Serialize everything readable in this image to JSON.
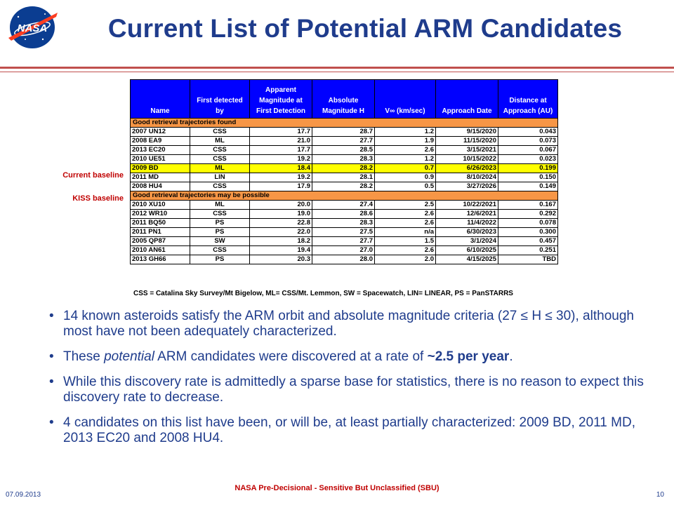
{
  "slide": {
    "title": "Current List of Potential ARM Candidates",
    "logo_text": "NASA"
  },
  "side_labels": {
    "current": "Current baseline",
    "kiss": "KISS baseline"
  },
  "table": {
    "headers": [
      "Name",
      "First detected by",
      "Apparent Magnitude at First Detection",
      "Absolute Magnitude H",
      "V∞ (km/sec)",
      "Approach Date",
      "Distance at Approach (AU)"
    ],
    "section1": "Good retrieval trajectories found",
    "rows1": [
      [
        "2007 UN12",
        "CSS",
        "17.7",
        "28.7",
        "1.2",
        "9/15/2020",
        "0.043"
      ],
      [
        "2008 EA9",
        "ML",
        "21.0",
        "27.7",
        "1.9",
        "11/15/2020",
        "0.073"
      ],
      [
        "2013 EC20",
        "CSS",
        "17.7",
        "28.5",
        "2.6",
        "3/15/2021",
        "0.067"
      ],
      [
        "2010 UE51",
        "CSS",
        "19.2",
        "28.3",
        "1.2",
        "10/15/2022",
        "0.023"
      ],
      [
        "2009 BD",
        "ML",
        "18.4",
        "28.2",
        "0.7",
        "6/26/2023",
        "0.199"
      ],
      [
        "2011 MD",
        "LIN",
        "19.2",
        "28.1",
        "0.9",
        "8/10/2024",
        "0.150"
      ],
      [
        "2008 HU4",
        "CSS",
        "17.9",
        "28.2",
        "0.5",
        "3/27/2026",
        "0.149"
      ]
    ],
    "section2": "Good retrieval trajectories may be possible",
    "rows2": [
      [
        "2010 XU10",
        "ML",
        "20.0",
        "27.4",
        "2.5",
        "10/22/2021",
        "0.167"
      ],
      [
        "2012 WR10",
        "CSS",
        "19.0",
        "28.6",
        "2.6",
        "12/6/2021",
        "0.292"
      ],
      [
        "2011 BQ50",
        "PS",
        "22.8",
        "28.3",
        "2.6",
        "11/4/2022",
        "0.078"
      ],
      [
        "2011 PN1",
        "PS",
        "22.0",
        "27.5",
        "n/a",
        "6/30/2023",
        "0.300"
      ],
      [
        "2005 QP87",
        "SW",
        "18.2",
        "27.7",
        "1.5",
        "3/1/2024",
        "0.457"
      ],
      [
        "2010 AN61",
        "CSS",
        "19.4",
        "27.0",
        "2.6",
        "6/10/2025",
        "0.251"
      ],
      [
        "2013 GH66",
        "PS",
        "20.3",
        "28.0",
        "2.0",
        "4/15/2025",
        "TBD"
      ]
    ],
    "highlight_row": "2009 BD",
    "footnote": "CSS = Catalina Sky Survey/Mt Bigelow, ML= CSS/Mt. Lemmon, SW = Spacewatch, LIN= LINEAR, PS = PanSTARRS"
  },
  "bullets": {
    "b1": "14 known asteroids satisfy the ARM orbit and absolute magnitude criteria (27 ≤ H ≤ 30), although most have not been adequately characterized.",
    "b2_pre": "These ",
    "b2_em": "potential",
    "b2_mid": " ARM candidates were discovered at a rate of ",
    "b2_strong": "~2.5 per year",
    "b2_post": ".",
    "b3": "While this discovery rate is admittedly a sparse base for statistics, there is no reason to expect this discovery rate to decrease.",
    "b4": "4 candidates on this list have been, or will be, at least partially characterized: 2009 BD,   2011 MD,   2013 EC20   and   2008 HU4."
  },
  "footer": {
    "date": "07.09.2013",
    "classification": "NASA Pre-Decisional - Sensitive But Unclassified (SBU)",
    "page": "10"
  },
  "colors": {
    "title": "#1f3c8c",
    "header_bg": "#0000ff",
    "section_bg": "#f79646",
    "highlight": "#ffff00",
    "label_red": "#c00000"
  }
}
